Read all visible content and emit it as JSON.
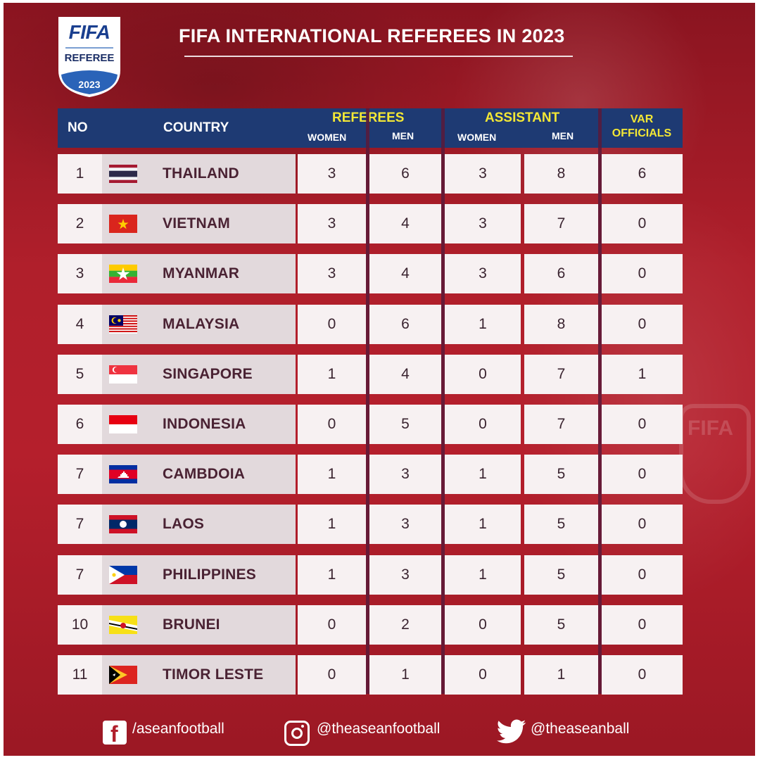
{
  "logo": {
    "brand": "FIFA",
    "label": "REFEREE",
    "year": "2023"
  },
  "title": "FIFA INTERNATIONAL REFEREES IN 2023",
  "header": {
    "no": "NO",
    "country": "COUNTRY",
    "referees": "REFEREES",
    "assistant": "ASSISTANT",
    "women": "WOMEN",
    "men": "MEN",
    "var_line1": "VAR",
    "var_line2": "OFFICIALS"
  },
  "rows": [
    {
      "no": "1",
      "country": "THAILAND",
      "flag": "thailand",
      "ref_women": "3",
      "ref_men": "6",
      "ast_women": "3",
      "ast_men": "8",
      "var": "6"
    },
    {
      "no": "2",
      "country": "VIETNAM",
      "flag": "vietnam",
      "ref_women": "3",
      "ref_men": "4",
      "ast_women": "3",
      "ast_men": "7",
      "var": "0"
    },
    {
      "no": "3",
      "country": "MYANMAR",
      "flag": "myanmar",
      "ref_women": "3",
      "ref_men": "4",
      "ast_women": "3",
      "ast_men": "6",
      "var": "0"
    },
    {
      "no": "4",
      "country": "MALAYSIA",
      "flag": "malaysia",
      "ref_women": "0",
      "ref_men": "6",
      "ast_women": "1",
      "ast_men": "8",
      "var": "0"
    },
    {
      "no": "5",
      "country": "SINGAPORE",
      "flag": "singapore",
      "ref_women": "1",
      "ref_men": "4",
      "ast_women": "0",
      "ast_men": "7",
      "var": "1"
    },
    {
      "no": "6",
      "country": "INDONESIA",
      "flag": "indonesia",
      "ref_women": "0",
      "ref_men": "5",
      "ast_women": "0",
      "ast_men": "7",
      "var": "0"
    },
    {
      "no": "7",
      "country": "CAMBDOIA",
      "flag": "cambodia",
      "ref_women": "1",
      "ref_men": "3",
      "ast_women": "1",
      "ast_men": "5",
      "var": "0"
    },
    {
      "no": "7",
      "country": "LAOS",
      "flag": "laos",
      "ref_women": "1",
      "ref_men": "3",
      "ast_women": "1",
      "ast_men": "5",
      "var": "0"
    },
    {
      "no": "7",
      "country": "PHILIPPINES",
      "flag": "philippines",
      "ref_women": "1",
      "ref_men": "3",
      "ast_women": "1",
      "ast_men": "5",
      "var": "0"
    },
    {
      "no": "10",
      "country": "BRUNEI",
      "flag": "brunei",
      "ref_women": "0",
      "ref_men": "2",
      "ast_women": "0",
      "ast_men": "5",
      "var": "0"
    },
    {
      "no": "11",
      "country": "TIMOR LESTE",
      "flag": "timor-leste",
      "ref_women": "0",
      "ref_men": "1",
      "ast_women": "0",
      "ast_men": "1",
      "var": "0"
    }
  ],
  "footer": {
    "facebook": "/aseanfootball",
    "instagram": "@theaseanfootball",
    "twitter": "@theaseanball"
  },
  "colors": {
    "background": "#b01f2b",
    "header": "#1e3a73",
    "header_accent": "#f3e735",
    "cell": "#f7f1f2"
  }
}
